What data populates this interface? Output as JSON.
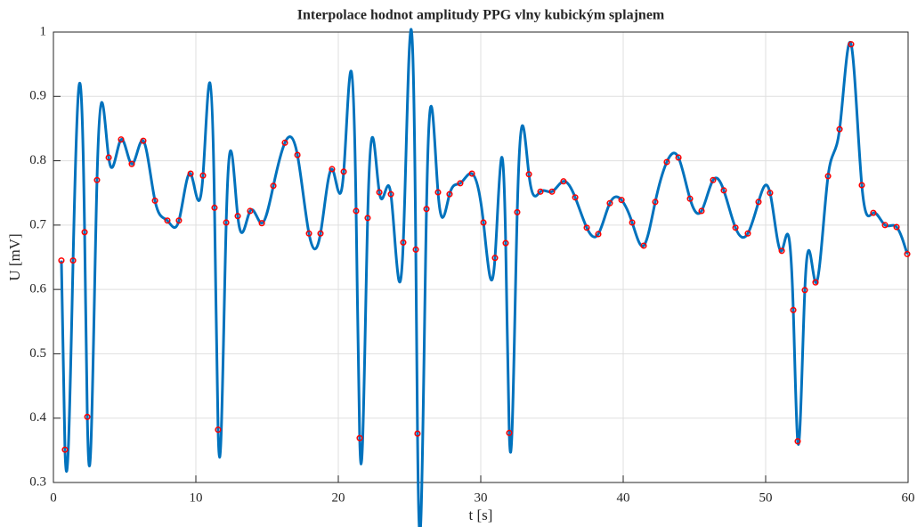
{
  "chart_data": {
    "type": "line",
    "title": "Interpolace hodnot amplitudy PPG vlny kubickým splajnem",
    "x_label": "t [s]",
    "y_label": "U [mV]",
    "x": [
      0.56,
      0.81,
      1.38,
      2.19,
      2.38,
      3.06,
      3.88,
      4.75,
      5.5,
      6.31,
      7.13,
      8.0,
      8.81,
      9.63,
      10.5,
      11.31,
      11.56,
      12.13,
      12.94,
      13.81,
      14.63,
      15.44,
      16.25,
      17.13,
      17.94,
      18.75,
      19.56,
      20.38,
      21.25,
      21.5,
      22.06,
      22.88,
      23.69,
      24.56,
      25.44,
      25.56,
      26.19,
      27.0,
      27.81,
      28.56,
      29.38,
      30.19,
      31.0,
      31.75,
      32.0,
      32.56,
      33.38,
      34.19,
      35.0,
      35.81,
      36.63,
      37.44,
      38.25,
      39.06,
      39.88,
      40.63,
      41.44,
      42.25,
      43.06,
      43.88,
      44.69,
      45.5,
      46.31,
      47.06,
      47.88,
      48.75,
      49.5,
      50.31,
      51.13,
      51.94,
      52.25,
      52.75,
      53.5,
      54.38,
      55.19,
      56.0,
      56.75,
      57.56,
      58.38,
      59.19,
      59.94
    ],
    "values": [
      0.645,
      0.351,
      0.645,
      0.689,
      0.402,
      0.77,
      0.805,
      0.833,
      0.795,
      0.831,
      0.738,
      0.707,
      0.707,
      0.78,
      0.777,
      0.727,
      0.382,
      0.704,
      0.714,
      0.722,
      0.703,
      0.761,
      0.828,
      0.809,
      0.687,
      0.687,
      0.787,
      0.783,
      0.722,
      0.369,
      0.711,
      0.751,
      0.748,
      0.673,
      0.662,
      0.376,
      0.725,
      0.751,
      0.748,
      0.765,
      0.78,
      0.704,
      0.649,
      0.672,
      0.377,
      0.72,
      0.779,
      0.752,
      0.752,
      0.768,
      0.743,
      0.696,
      0.686,
      0.734,
      0.739,
      0.704,
      0.668,
      0.736,
      0.798,
      0.805,
      0.741,
      0.722,
      0.77,
      0.754,
      0.696,
      0.687,
      0.736,
      0.75,
      0.66,
      0.568,
      0.364,
      0.599,
      0.611,
      0.776,
      0.849,
      0.981,
      0.762,
      0.719,
      0.7,
      0.697,
      0.655
    ],
    "line_color": "#0072bd",
    "marker_color": "#ff0000",
    "xlim": [
      0,
      60
    ],
    "xticks": [
      0,
      10,
      20,
      30,
      40,
      50,
      60
    ],
    "ylim": [
      0.3,
      1
    ],
    "yticks": [
      0.3,
      0.4,
      0.5,
      0.6,
      0.7,
      0.8,
      0.9,
      1
    ],
    "grid": true
  }
}
